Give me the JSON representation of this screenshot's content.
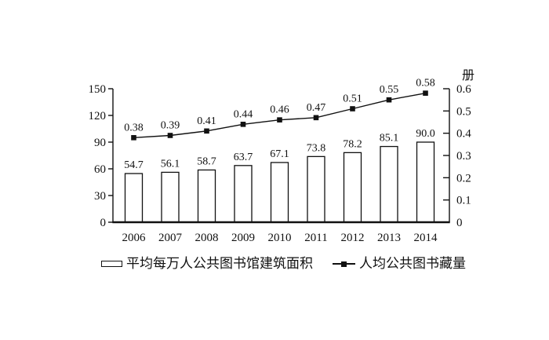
{
  "chart_data": {
    "type": "bar+line",
    "title": "",
    "categories": [
      "2006",
      "2007",
      "2008",
      "2009",
      "2010",
      "2011",
      "2012",
      "2013",
      "2014"
    ],
    "series": [
      {
        "name": "平均每万人公共图书馆建筑面积",
        "type": "bar",
        "axis": "left",
        "values": [
          54.7,
          56.1,
          58.7,
          63.7,
          67.1,
          73.8,
          78.2,
          85.1,
          90.0
        ],
        "labels": [
          "54.7",
          "56.1",
          "58.7",
          "63.7",
          "67.1",
          "73.8",
          "78.2",
          "85.1",
          "90.0"
        ]
      },
      {
        "name": "人均公共图书藏量",
        "type": "line",
        "axis": "right",
        "values": [
          0.38,
          0.39,
          0.41,
          0.44,
          0.46,
          0.47,
          0.51,
          0.55,
          0.58
        ],
        "labels": [
          "0.38",
          "0.39",
          "0.41",
          "0.44",
          "0.46",
          "0.47",
          "0.51",
          "0.55",
          "0.58"
        ]
      }
    ],
    "left_axis": {
      "min": 0,
      "max": 150,
      "tick_labels": [
        "0",
        "30",
        "60",
        "90",
        "120",
        "150"
      ]
    },
    "right_axis": {
      "min": 0,
      "max": 0.6,
      "tick_labels": [
        "0",
        "0.1",
        "0.2",
        "0.3",
        "0.4",
        "0.5",
        "0.6"
      ],
      "unit_label": "册"
    },
    "legend": [
      {
        "label": "平均每万人公共图书馆建筑面积",
        "marker": "bar-outline"
      },
      {
        "label": "人均公共图书藏量",
        "marker": "line-square"
      }
    ],
    "grid": false,
    "legend_position": "bottom",
    "colors": {
      "stroke": "#111111",
      "bar_fill": "#ffffff",
      "background": "#ffffff"
    }
  }
}
